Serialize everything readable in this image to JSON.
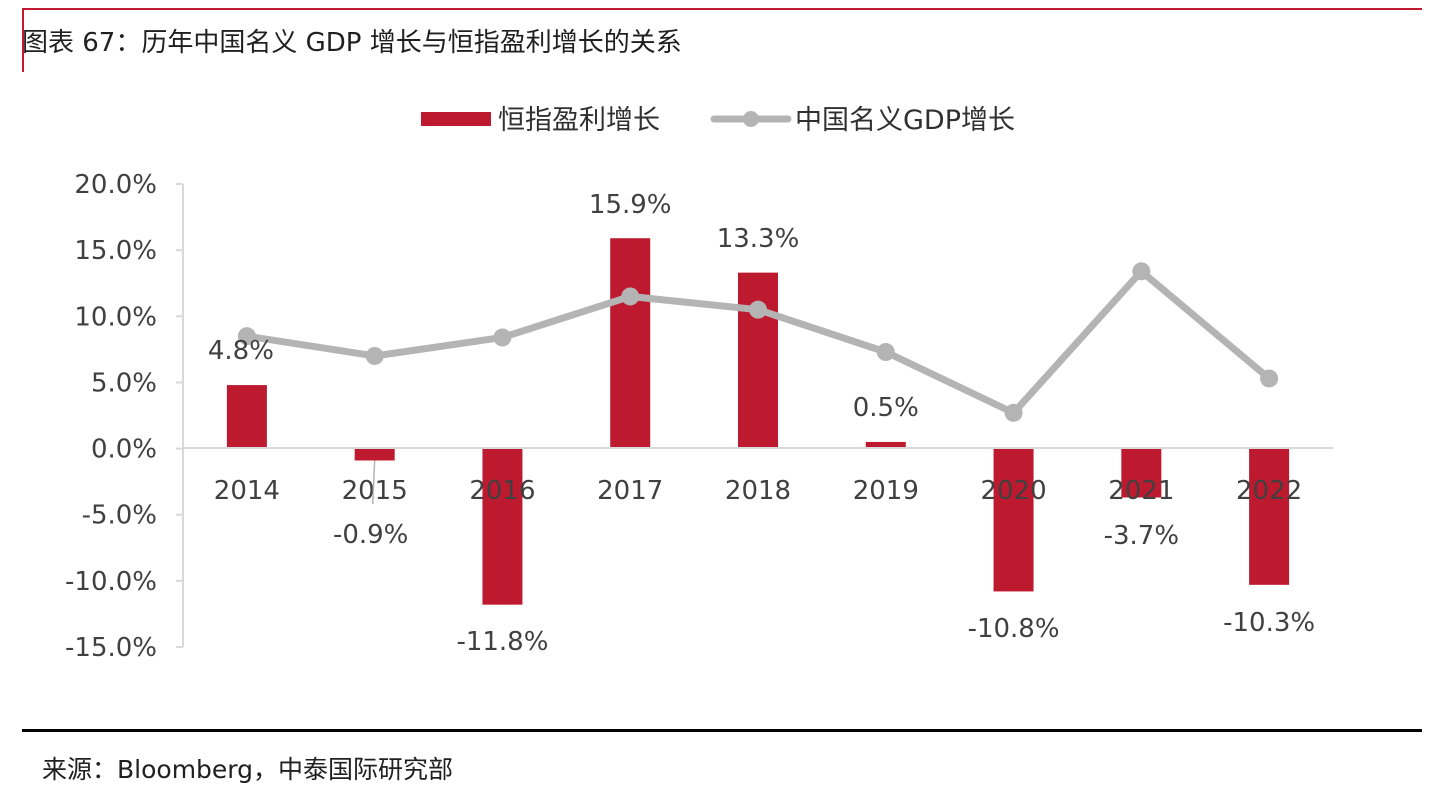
{
  "header": {
    "title": "图表 67：历年中国名义 GDP 增长与恒指盈利增长的关系"
  },
  "footer": {
    "source": "来源：Bloomberg，中泰国际研究部"
  },
  "colors": {
    "bar": "#be1a2f",
    "line": "#b4b4b4",
    "axis": "#d9d9d9",
    "accent": "#c0182e"
  },
  "chart_data": {
    "type": "bar+line",
    "title": "",
    "categories": [
      "2014",
      "2015",
      "2016",
      "2017",
      "2018",
      "2019",
      "2020",
      "2021",
      "2022"
    ],
    "series": [
      {
        "name": "恒指盈利增长",
        "type": "bar",
        "values": [
          4.8,
          -0.9,
          -11.8,
          15.9,
          13.3,
          0.5,
          -10.8,
          -3.7,
          -10.3
        ],
        "labels": [
          "4.8%",
          "-0.9%",
          "-11.8%",
          "15.9%",
          "13.3%",
          "0.5%",
          "-10.8%",
          "-3.7%",
          "-10.3%"
        ]
      },
      {
        "name": "中国名义GDP增长",
        "type": "line",
        "values": [
          8.5,
          7.0,
          8.4,
          11.5,
          10.5,
          7.3,
          2.7,
          13.4,
          5.3
        ]
      }
    ],
    "ylim": [
      -15,
      20
    ],
    "yticks": [
      20,
      15,
      10,
      5,
      0,
      -5,
      -10,
      -15
    ],
    "ytick_labels": [
      "20.0%",
      "15.0%",
      "10.0%",
      "5.0%",
      "0.0%",
      "-5.0%",
      "-10.0%",
      "-15.0%"
    ],
    "legend_position": "top-center",
    "grid": false
  }
}
